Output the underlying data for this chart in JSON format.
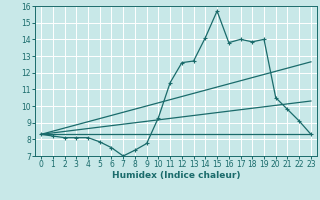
{
  "xlabel": "Humidex (Indice chaleur)",
  "xlim": [
    -0.5,
    23.5
  ],
  "ylim": [
    7,
    16
  ],
  "yticks": [
    7,
    8,
    9,
    10,
    11,
    12,
    13,
    14,
    15,
    16
  ],
  "xticks": [
    0,
    1,
    2,
    3,
    4,
    5,
    6,
    7,
    8,
    9,
    10,
    11,
    12,
    13,
    14,
    15,
    16,
    17,
    18,
    19,
    20,
    21,
    22,
    23
  ],
  "bg_color": "#c8e8e8",
  "grid_color": "#ffffff",
  "line_color": "#1a6b6b",
  "line1_x": [
    0,
    1,
    2,
    3,
    4,
    5,
    6,
    7,
    8,
    9,
    10,
    11,
    12,
    13,
    14,
    15,
    16,
    17,
    18,
    19,
    20,
    21,
    22,
    23
  ],
  "line1_y": [
    8.3,
    8.2,
    8.1,
    8.1,
    8.1,
    7.85,
    7.5,
    7.0,
    7.35,
    7.75,
    9.3,
    11.4,
    12.6,
    12.7,
    14.1,
    15.7,
    13.8,
    14.0,
    13.85,
    14.0,
    10.5,
    9.8,
    9.1,
    8.3
  ],
  "line2_x": [
    0,
    23
  ],
  "line2_y": [
    8.3,
    8.3
  ],
  "line3_x": [
    0,
    23
  ],
  "line3_y": [
    8.3,
    10.3
  ],
  "line4_x": [
    0,
    23
  ],
  "line4_y": [
    8.3,
    12.65
  ]
}
